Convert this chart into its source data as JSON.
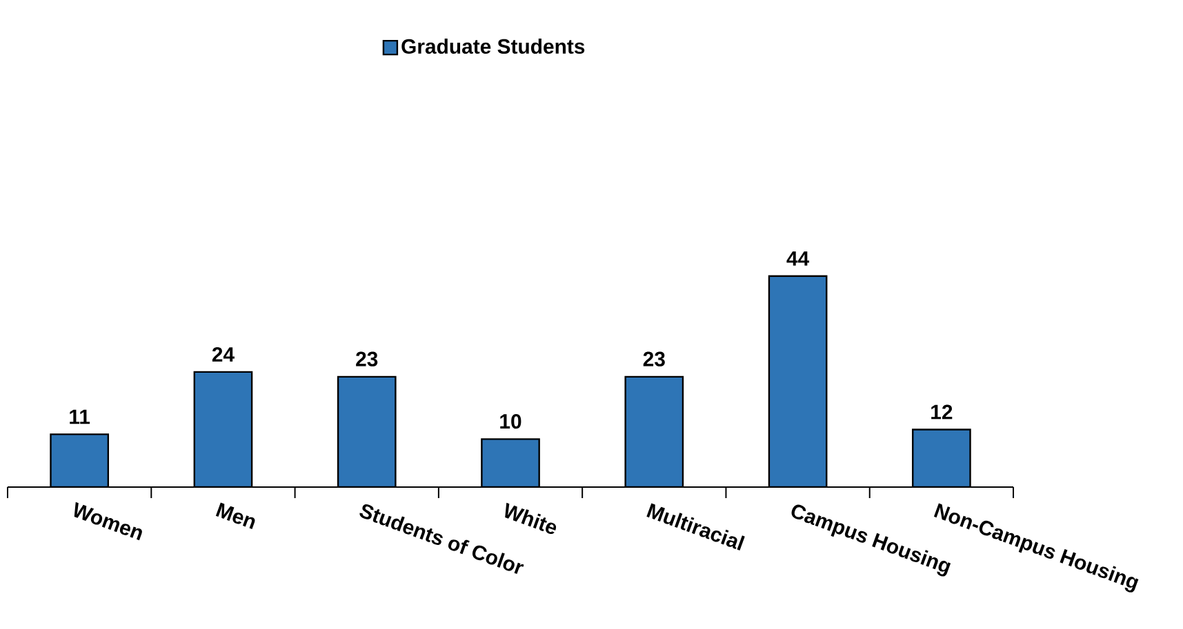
{
  "chart_data": {
    "type": "bar",
    "categories": [
      "Women",
      "Men",
      "Students of Color",
      "White",
      "Multiracial",
      "Campus Housing",
      "Non-Campus Housing"
    ],
    "series": [
      {
        "name": "Graduate Students",
        "color": "#2e75b6",
        "values": [
          11,
          24,
          23,
          10,
          23,
          44,
          12
        ]
      }
    ],
    "data_labels": true,
    "legend": "top",
    "grid": false
  }
}
